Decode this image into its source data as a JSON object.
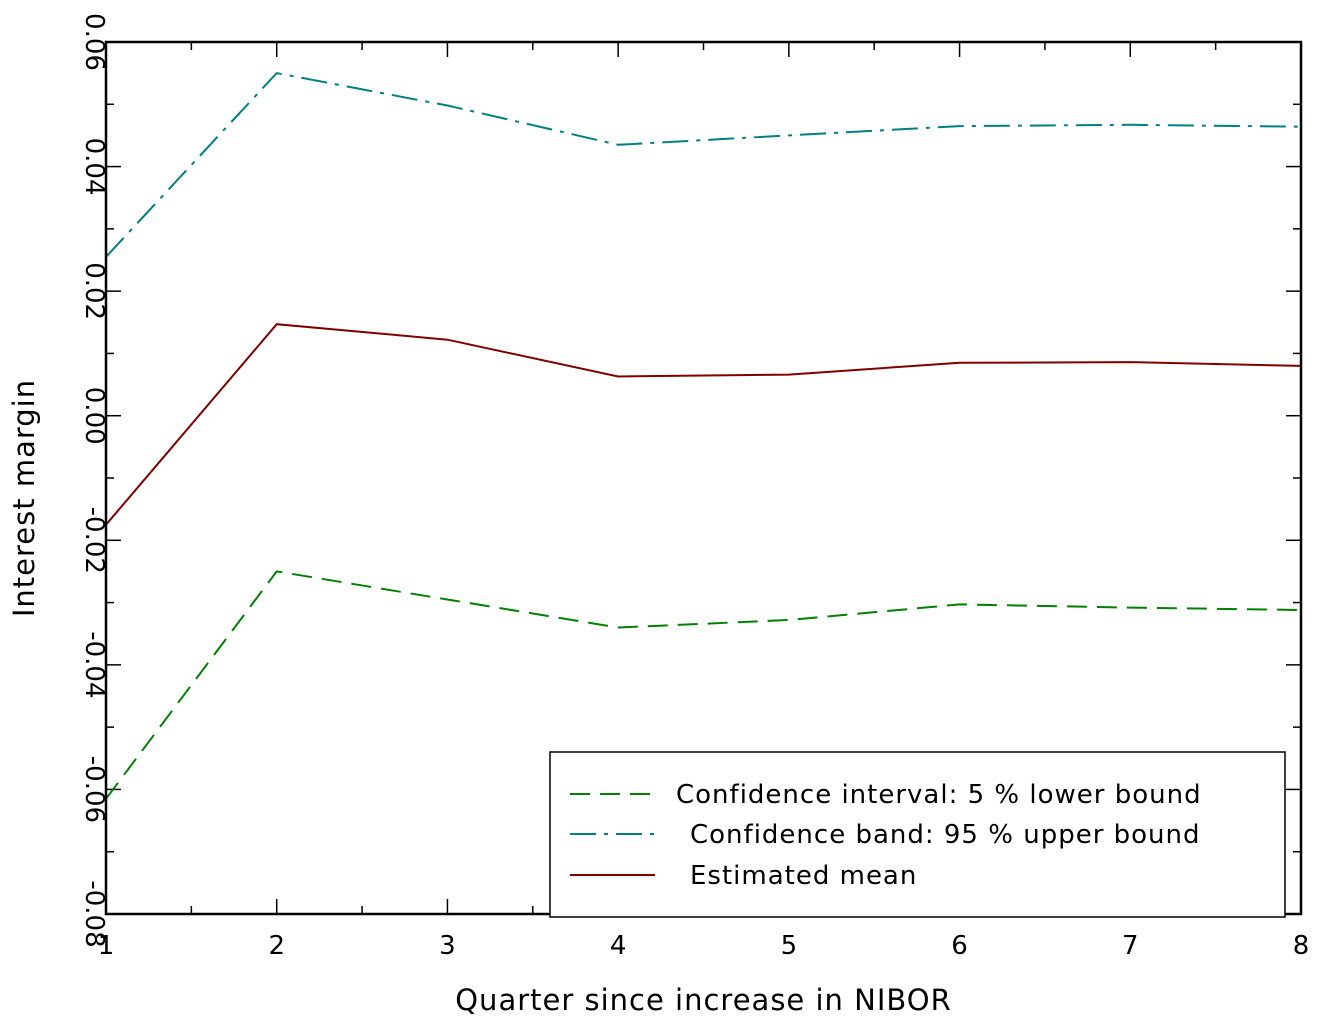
{
  "chart_data": {
    "type": "line",
    "title": "",
    "xlabel": "Quarter since increase in NIBOR",
    "ylabel": "Interest margin",
    "x": [
      1,
      2,
      3,
      4,
      5,
      6,
      7,
      8
    ],
    "xlim": [
      1,
      8
    ],
    "ylim": [
      -0.08,
      0.06
    ],
    "xticks": [
      1,
      2,
      3,
      4,
      5,
      6,
      7,
      8
    ],
    "yticks": [
      -0.08,
      -0.06,
      -0.04,
      -0.02,
      0.0,
      0.02,
      0.04,
      0.06
    ],
    "ytick_labels": [
      "-0.08",
      "-0.06",
      "-0.04",
      "-0.02",
      "0.00",
      "0.02",
      "0.04",
      "0.06"
    ],
    "grid": false,
    "legend_position": "bottom-right",
    "series": [
      {
        "name": "Confidence interval: 5 % lower bound",
        "style": "dashed",
        "color": "#008000",
        "values": [
          -0.0615,
          -0.025,
          -0.0295,
          -0.034,
          -0.0328,
          -0.0303,
          -0.0308,
          -0.0312
        ]
      },
      {
        "name": "Confidence band: 95 % upper bound",
        "style": "dash-dot",
        "color": "#008080",
        "values": [
          0.0255,
          0.055,
          0.0498,
          0.0435,
          0.045,
          0.0465,
          0.0467,
          0.0464
        ]
      },
      {
        "name": "Estimated mean",
        "style": "solid",
        "color": "#800000",
        "values": [
          -0.0175,
          0.0147,
          0.0122,
          0.0063,
          0.0066,
          0.0085,
          0.0086,
          0.008
        ]
      }
    ]
  }
}
